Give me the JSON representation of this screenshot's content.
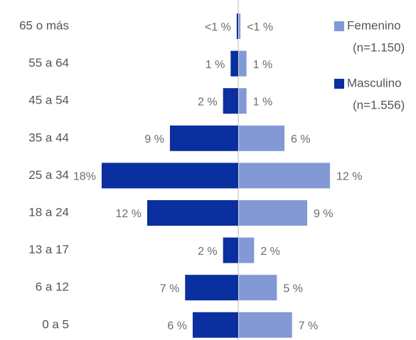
{
  "chart_data": {
    "type": "pyramid",
    "categories": [
      "65 o más",
      "55 a 64",
      "45 a 54",
      "35 a 44",
      "25 a 34",
      "18 a 24",
      "13 a 17",
      "6 a 12",
      "0 a 5"
    ],
    "series": [
      {
        "name": "Masculino",
        "n_label": "(n=1.556)",
        "color": "#0a2f9e",
        "side": "left",
        "values": [
          0.2,
          1,
          2,
          9,
          18,
          12,
          2,
          7,
          6
        ],
        "value_labels": [
          "<1 %",
          "1 %",
          "2 %",
          "9 %",
          "18%",
          "12 %",
          "2 %",
          "7 %",
          "6  %"
        ]
      },
      {
        "name": "Femenino",
        "n_label": "(n=1.150)",
        "color": "#8299d5",
        "side": "right",
        "values": [
          0.2,
          1,
          1,
          6,
          12,
          9,
          2,
          5,
          7
        ],
        "value_labels": [
          "<1 %",
          "1 %",
          "1 %",
          "6 %",
          "12 %",
          "9 %",
          "2 %",
          "5 %",
          "7 %"
        ]
      }
    ]
  }
}
